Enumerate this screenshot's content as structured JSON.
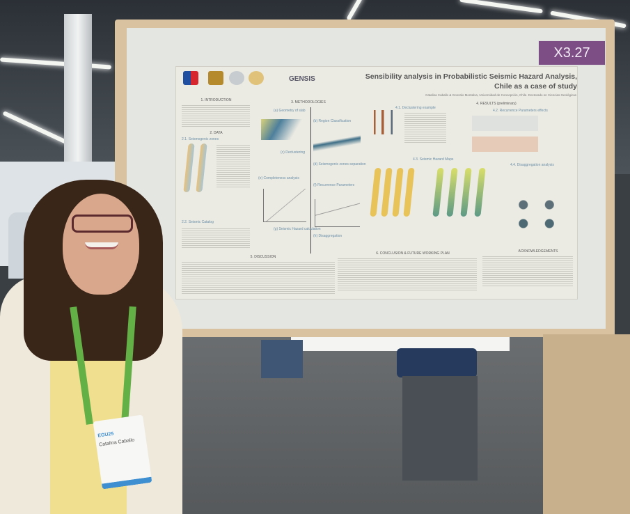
{
  "booth_label": "X3.27",
  "poster": {
    "title_line1": "Sensibility analysis in Probabilistic Seismic Hazard Analysis,",
    "title_line2": "Chile as a case of study",
    "authors": "Catalina Caballo & Gonzalo Montalva, Universidad de Concepción, Chile. Doctorado en Ciencias Geológicas",
    "logo_text": "GENSIS",
    "sections": {
      "intro": "1. INTRODUCTION",
      "data": "2. DATA",
      "data_sub1": "2.1. Seismogenic zones",
      "data_sub2": "2.2. Seismic Catalog",
      "methods": "3. METHODOLOGIES",
      "m_a": "(a) Geometry of slab",
      "m_b": "(b) Region Classification",
      "m_c": "(c) Declustering",
      "m_d": "(d) Seismogenic zones separation",
      "m_e": "(e) Completeness analysis",
      "m_f": "(f) Recurrence Parameters",
      "m_g": "(g) Seismic Hazard calculation",
      "m_h": "(h) Disaggregation",
      "results": "4. RESULTS (preliminary)",
      "r1": "4.1. Declustering example",
      "r2": "4.2. Recurrence Parameters effects",
      "r3": "4.3. Seismic Hazard Maps",
      "r4": "4.4. Disaggregation analysis",
      "discussion": "5. DISCUSSION",
      "conclusion": "6. CONCLUSION & FUTURE WORKING PLAN",
      "ack": "ACKNOWLEDGEMENTS"
    }
  },
  "badge": {
    "event": "EGU25",
    "name": "Catalina Caballo"
  }
}
